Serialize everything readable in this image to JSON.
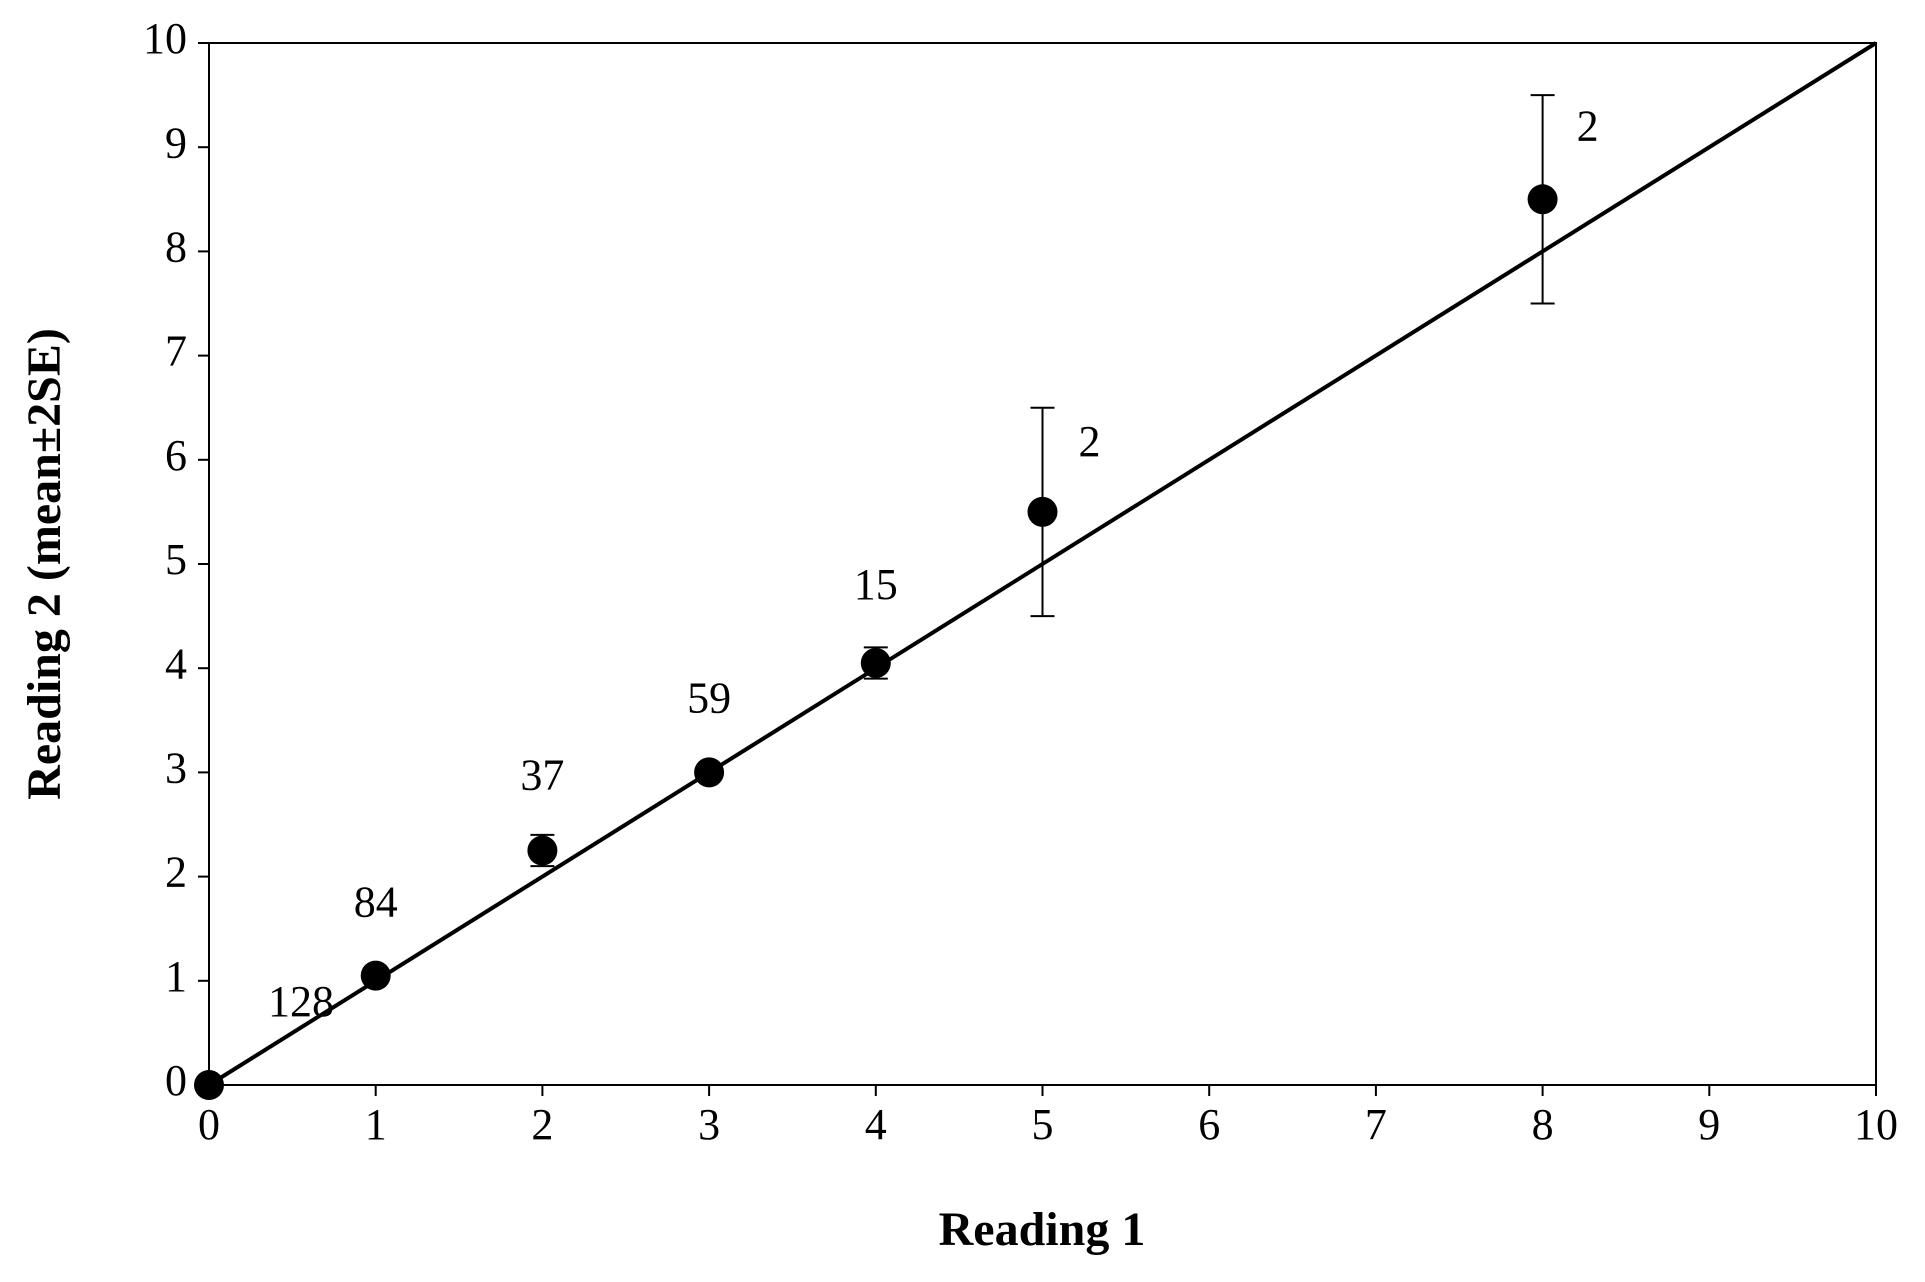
{
  "chart_data": {
    "type": "scatter",
    "x_label": "Reading 1",
    "y_label": "Reading 2 (mean±2SE)",
    "series": [
      {
        "x": [
          0,
          1,
          2,
          3,
          4,
          5,
          8
        ],
        "values": [
          0,
          1.05,
          2.25,
          3.0,
          4.05,
          5.5,
          8.5
        ],
        "errors": [
          0,
          0.05,
          0.15,
          0.05,
          0.15,
          1.0,
          1.0
        ],
        "n": [
          128,
          84,
          37,
          59,
          15,
          2,
          2
        ],
        "color": "#000000"
      }
    ],
    "reference_line": {
      "x": [
        0,
        10
      ],
      "y": [
        0,
        10
      ],
      "color": "#000000"
    },
    "xlim": [
      0,
      10
    ],
    "xticks": [
      0,
      1,
      2,
      3,
      4,
      5,
      6,
      7,
      8,
      9,
      10
    ],
    "ylim": [
      0,
      10
    ],
    "yticks": [
      0,
      1,
      2,
      3,
      4,
      5,
      6,
      7,
      8,
      9,
      10
    ],
    "grid": false
  }
}
